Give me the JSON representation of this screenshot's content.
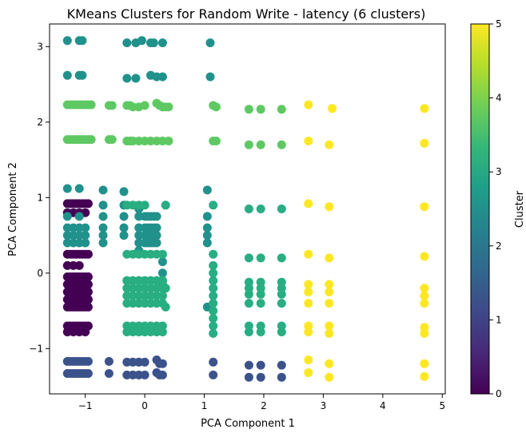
{
  "chart_data": {
    "type": "scatter",
    "title": "KMeans Clusters for Random Write - latency (6 clusters)",
    "xlabel": "PCA Component 1",
    "ylabel": "PCA Component 2",
    "xlim": [
      -1.6,
      5.05
    ],
    "ylim": [
      -1.6,
      3.3
    ],
    "xticks": [
      -1,
      0,
      1,
      2,
      3,
      4,
      5
    ],
    "yticks": [
      -1,
      0,
      1,
      2,
      3
    ],
    "grid": false,
    "colorbar": {
      "label": "Cluster",
      "min": 0,
      "max": 5,
      "ticks": [
        0,
        1,
        2,
        3,
        4,
        5
      ],
      "colormap": "viridis"
    },
    "viridis": [
      "#440154",
      "#482878",
      "#3e4989",
      "#31688e",
      "#26828e",
      "#1f9e89",
      "#35b779",
      "#6ece58",
      "#b5de2b",
      "#fde725"
    ],
    "cluster_colors": [
      "#440154",
      "#3b528b",
      "#21918c",
      "#28ae80",
      "#5ec962",
      "#fde725"
    ],
    "series": [
      {
        "cluster": 0,
        "x": [
          -1.3,
          -1.25,
          -1.2,
          -1.15,
          -1.1,
          -1.05,
          -1.0,
          -0.95,
          -1.3,
          -1.25,
          -1.2,
          -1.15,
          -1.1,
          -1.05,
          -1.0,
          -0.95,
          -1.3,
          -1.25,
          -1.2,
          -1.15,
          -1.1,
          -1.05,
          -1.0,
          -0.95,
          -1.3,
          -1.25,
          -1.2,
          -1.15,
          -1.1,
          -1.05,
          -1.0,
          -0.95,
          -1.3,
          -1.25,
          -1.2,
          -1.15,
          -1.1,
          -1.05,
          -1.0,
          -0.95,
          -1.3,
          -1.25,
          -1.2,
          -1.15,
          -1.1,
          -1.05,
          -1.0,
          -0.95,
          -1.3,
          -1.25,
          -1.2,
          -1.15,
          -1.1,
          -1.05,
          -1.0,
          -0.95,
          -1.3,
          -1.25,
          -1.2,
          -1.15,
          -1.1,
          -1.05,
          -1.0,
          -0.95,
          -1.3,
          -1.2,
          -1.1,
          -1.0,
          -1.3,
          -1.2,
          -1.1,
          -1.3,
          -1.2,
          -1.1,
          -1.0
        ],
        "y": [
          0.92,
          0.92,
          0.92,
          0.92,
          0.92,
          0.92,
          0.92,
          0.92,
          0.25,
          0.25,
          0.25,
          0.25,
          0.25,
          0.25,
          0.25,
          0.25,
          -0.05,
          -0.05,
          -0.05,
          -0.05,
          -0.05,
          -0.05,
          -0.05,
          -0.05,
          -0.15,
          -0.15,
          -0.15,
          -0.15,
          -0.15,
          -0.15,
          -0.15,
          -0.15,
          -0.25,
          -0.25,
          -0.25,
          -0.25,
          -0.25,
          -0.25,
          -0.25,
          -0.25,
          -0.35,
          -0.35,
          -0.35,
          -0.35,
          -0.35,
          -0.35,
          -0.35,
          -0.35,
          -0.45,
          -0.45,
          -0.45,
          -0.45,
          -0.45,
          -0.45,
          -0.45,
          -0.45,
          -0.7,
          -0.7,
          -0.7,
          -0.7,
          -0.7,
          -0.7,
          -0.7,
          -0.7,
          0.8,
          0.8,
          0.8,
          0.8,
          0.1,
          0.1,
          0.1,
          -0.78,
          -0.78,
          -0.78,
          -0.78
        ]
      },
      {
        "cluster": 1,
        "x": [
          -1.3,
          -1.25,
          -1.2,
          -1.15,
          -1.1,
          -1.05,
          -1.0,
          -0.95,
          -1.3,
          -1.25,
          -1.2,
          -1.15,
          -1.1,
          -1.05,
          -1.0,
          -0.95,
          -0.6,
          -0.6,
          -0.3,
          -0.2,
          -0.1,
          0.0,
          -0.3,
          -0.2,
          -0.1,
          0.0,
          0.2,
          0.25,
          0.3,
          0.2,
          0.25,
          0.3,
          1.15,
          1.15,
          1.75,
          1.95,
          2.3,
          1.75,
          1.95,
          2.3
        ],
        "y": [
          -1.17,
          -1.17,
          -1.17,
          -1.17,
          -1.17,
          -1.17,
          -1.17,
          -1.17,
          -1.33,
          -1.33,
          -1.33,
          -1.33,
          -1.33,
          -1.33,
          -1.33,
          -1.33,
          -1.17,
          -1.33,
          -1.18,
          -1.18,
          -1.18,
          -1.18,
          -1.35,
          -1.35,
          -1.35,
          -1.35,
          -1.15,
          -1.2,
          -1.2,
          -1.32,
          -1.35,
          -1.35,
          -1.18,
          -1.35,
          -1.22,
          -1.22,
          -1.22,
          -1.38,
          -1.38,
          -1.38
        ]
      },
      {
        "cluster": 2,
        "x": [
          -1.3,
          -1.1,
          -1.05,
          -0.3,
          -0.15,
          -0.05,
          0.1,
          0.15,
          0.3,
          1.1,
          -1.3,
          -1.1,
          -1.05,
          -0.3,
          -0.15,
          0.1,
          0.2,
          0.3,
          1.1,
          -1.3,
          -1.1,
          -1.3,
          -1.1,
          -1.3,
          -1.2,
          -1.1,
          -1.0,
          -1.3,
          -1.2,
          -1.1,
          -1.0,
          -1.3,
          -1.2,
          -1.1,
          -1.0,
          -0.7,
          -0.7,
          -0.7,
          -0.7,
          -0.7,
          -0.7,
          -0.35,
          -0.35,
          -0.35,
          -0.35,
          -0.35,
          0.0,
          0.05,
          0.1,
          0.15,
          0.2,
          0.0,
          0.05,
          0.1,
          0.15,
          0.2,
          0.0,
          0.05,
          0.1,
          0.15,
          0.2,
          0.0,
          0.05,
          0.1,
          0.15,
          0.2,
          1.05,
          1.05,
          1.05,
          1.05,
          1.05,
          1.05,
          0.3,
          0.3,
          0.3,
          -0.1,
          -0.1,
          -0.1,
          -0.1,
          -0.1,
          -0.1
        ],
        "y": [
          3.08,
          3.08,
          3.08,
          3.05,
          3.05,
          3.08,
          3.05,
          3.05,
          3.05,
          3.05,
          2.62,
          2.62,
          2.62,
          2.58,
          2.58,
          2.62,
          2.6,
          2.6,
          2.6,
          1.12,
          1.12,
          0.75,
          0.75,
          0.6,
          0.6,
          0.6,
          0.6,
          0.5,
          0.5,
          0.5,
          0.5,
          0.4,
          0.4,
          0.4,
          0.4,
          1.1,
          0.9,
          0.75,
          0.6,
          0.5,
          0.4,
          1.08,
          0.9,
          0.75,
          0.6,
          0.5,
          0.75,
          0.75,
          0.75,
          0.75,
          0.75,
          0.6,
          0.6,
          0.6,
          0.6,
          0.6,
          0.5,
          0.5,
          0.5,
          0.5,
          0.5,
          0.4,
          0.4,
          0.4,
          0.4,
          0.4,
          1.1,
          0.75,
          0.6,
          0.5,
          0.4,
          -0.45,
          0.15,
          0.0,
          -0.15,
          0.6,
          0.5,
          0.4,
          0.75,
          0.85,
          0.3
        ]
      },
      {
        "cluster": 3,
        "x": [
          -0.3,
          -0.2,
          -0.1,
          0.0,
          -0.3,
          -0.2,
          -0.1,
          0.0,
          0.1,
          0.2,
          0.3,
          -0.3,
          -0.2,
          -0.1,
          0.0,
          0.1,
          0.2,
          0.3,
          -0.3,
          -0.2,
          -0.1,
          0.0,
          0.1,
          0.2,
          0.3,
          -0.3,
          -0.2,
          -0.1,
          0.0,
          0.1,
          0.2,
          0.3,
          -0.3,
          -0.2,
          -0.1,
          0.0,
          0.1,
          0.2,
          0.3,
          -0.3,
          -0.2,
          -0.1,
          0.0,
          0.1,
          0.2,
          0.3,
          -0.3,
          -0.2,
          -0.1,
          0.0,
          0.1,
          0.2,
          0.3,
          -0.3,
          -0.2,
          -0.1,
          0.0,
          0.1,
          0.2,
          0.3,
          0.35,
          0.35,
          0.35,
          1.15,
          1.15,
          1.15,
          1.15,
          1.15,
          1.15,
          1.15,
          1.15,
          1.15,
          1.15,
          1.15,
          1.15,
          1.75,
          1.95,
          2.3,
          1.75,
          1.95,
          2.3,
          1.75,
          1.95,
          2.3,
          1.75,
          1.95,
          2.3,
          1.75,
          1.95,
          2.3,
          1.75,
          1.95,
          2.3,
          1.75,
          1.95,
          2.3,
          1.75,
          1.95,
          2.3
        ],
        "y": [
          0.9,
          0.9,
          0.9,
          0.9,
          0.25,
          0.25,
          0.25,
          0.25,
          0.25,
          0.25,
          0.25,
          -0.1,
          -0.1,
          -0.1,
          -0.1,
          -0.1,
          -0.1,
          -0.1,
          -0.2,
          -0.2,
          -0.2,
          -0.2,
          -0.2,
          -0.2,
          -0.2,
          -0.3,
          -0.3,
          -0.3,
          -0.3,
          -0.3,
          -0.3,
          -0.3,
          -0.4,
          -0.4,
          -0.4,
          -0.4,
          -0.4,
          -0.4,
          -0.4,
          -0.7,
          -0.7,
          -0.7,
          -0.7,
          -0.7,
          -0.7,
          -0.7,
          -0.78,
          -0.78,
          -0.78,
          -0.78,
          -0.78,
          -0.78,
          -0.78,
          -0.1,
          -0.1,
          -0.1,
          -0.1,
          -0.1,
          -0.1,
          -0.1,
          0.9,
          -0.2,
          -0.45,
          0.9,
          0.25,
          0.1,
          0.0,
          -0.1,
          -0.2,
          -0.3,
          -0.4,
          -0.7,
          -0.8,
          -0.6,
          -0.5,
          0.85,
          0.85,
          0.85,
          0.2,
          0.2,
          0.2,
          -0.12,
          -0.12,
          -0.12,
          -0.28,
          -0.28,
          -0.28,
          -0.4,
          -0.4,
          -0.4,
          -0.7,
          -0.7,
          -0.7,
          -0.78,
          -0.78,
          -0.78,
          -0.2,
          -0.2,
          -0.2
        ]
      },
      {
        "cluster": 4,
        "x": [
          -1.3,
          -1.25,
          -1.2,
          -1.15,
          -1.1,
          -1.05,
          -1.0,
          -0.95,
          -0.9,
          -0.6,
          -0.55,
          -0.3,
          -0.25,
          -0.2,
          -0.1,
          0.0,
          0.2,
          0.25,
          0.3,
          0.35,
          0.4,
          1.15,
          1.2,
          1.75,
          1.95,
          2.3,
          -1.3,
          -1.25,
          -1.2,
          -1.15,
          -1.1,
          -1.05,
          -1.0,
          -0.95,
          -0.9,
          -0.6,
          -0.55,
          -0.3,
          -0.25,
          -0.2,
          -0.1,
          0.0,
          0.1,
          0.2,
          0.3,
          0.4,
          1.15,
          1.2,
          1.75,
          1.95,
          2.3
        ],
        "y": [
          2.23,
          2.23,
          2.23,
          2.23,
          2.23,
          2.23,
          2.23,
          2.23,
          2.23,
          2.22,
          2.22,
          2.22,
          2.22,
          2.2,
          2.2,
          2.22,
          2.25,
          2.22,
          2.2,
          2.2,
          2.2,
          2.22,
          2.2,
          2.17,
          2.17,
          2.17,
          1.77,
          1.77,
          1.77,
          1.77,
          1.77,
          1.77,
          1.77,
          1.77,
          1.77,
          1.77,
          1.77,
          1.75,
          1.75,
          1.75,
          1.75,
          1.75,
          1.75,
          1.75,
          1.75,
          1.75,
          1.75,
          1.75,
          1.7,
          1.7,
          1.7
        ]
      },
      {
        "cluster": 5,
        "x": [
          2.75,
          3.15,
          4.7,
          2.75,
          3.1,
          4.7,
          2.75,
          3.1,
          4.7,
          2.75,
          3.1,
          4.7,
          2.75,
          2.75,
          2.75,
          3.1,
          3.1,
          3.1,
          4.7,
          4.7,
          4.7,
          2.75,
          2.75,
          3.1,
          3.1,
          4.7,
          4.7,
          2.75,
          2.75,
          3.1,
          3.1,
          4.7,
          4.7
        ],
        "y": [
          2.23,
          2.18,
          2.18,
          1.75,
          1.7,
          1.72,
          0.92,
          0.88,
          0.88,
          0.25,
          0.2,
          0.22,
          -0.15,
          -0.25,
          -0.4,
          -0.15,
          -0.25,
          -0.4,
          -0.2,
          -0.3,
          -0.4,
          -0.7,
          -0.78,
          -0.7,
          -0.8,
          -0.72,
          -0.8,
          -1.15,
          -1.32,
          -1.2,
          -1.38,
          -1.2,
          -1.37
        ]
      }
    ]
  }
}
